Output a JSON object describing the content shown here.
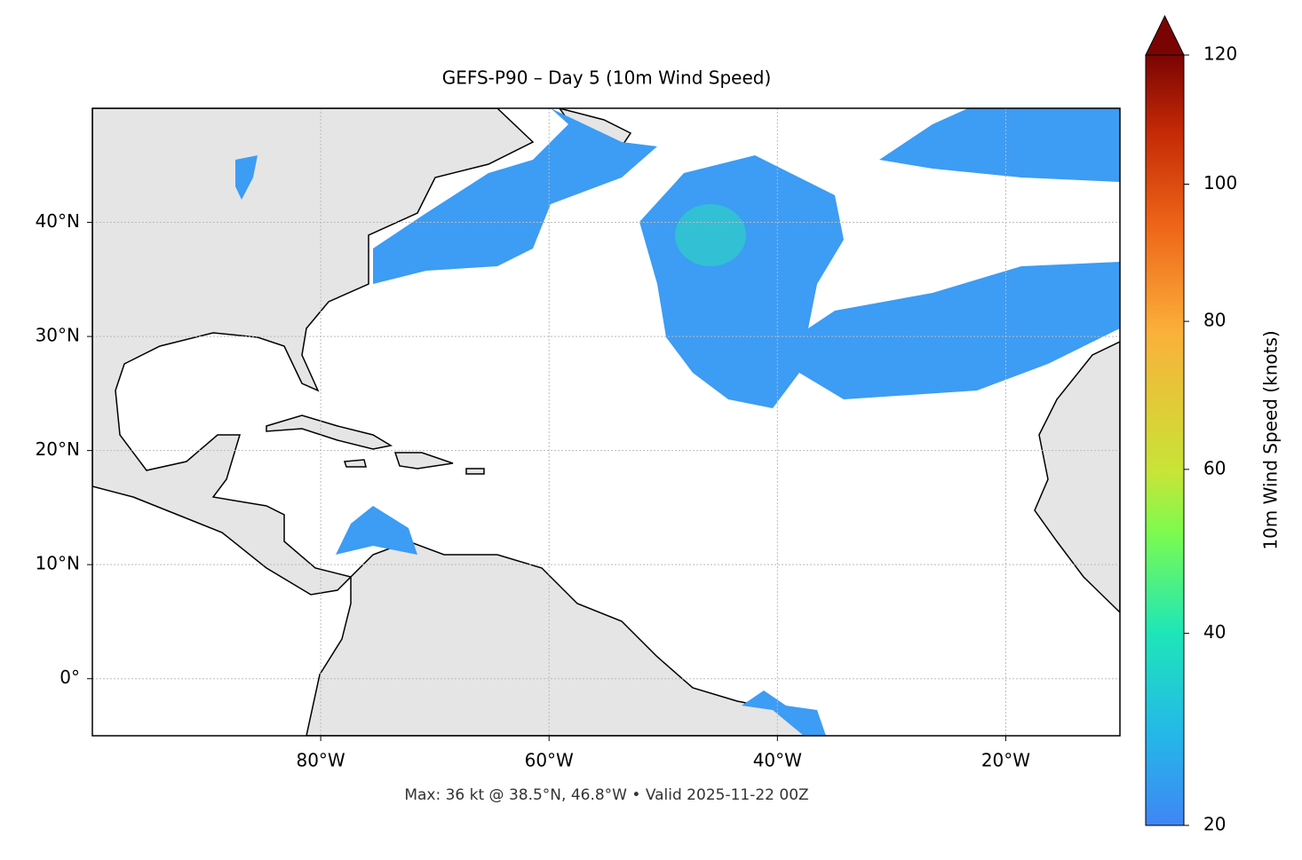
{
  "chart_data": {
    "type": "map",
    "title": "GEFS-P90 – Day 5 (10m Wind Speed)",
    "footnote": "Max: 36 kt @ 38.5°N, 46.8°W • Valid 2025-11-22 00Z",
    "xlim": [
      -100,
      -10
    ],
    "ylim": [
      -5,
      50
    ],
    "xticks": [
      {
        "value": -80,
        "label": "80°W"
      },
      {
        "value": -60,
        "label": "60°W"
      },
      {
        "value": -40,
        "label": "40°W"
      },
      {
        "value": -20,
        "label": "20°W"
      }
    ],
    "yticks": [
      {
        "value": 0,
        "label": "0°"
      },
      {
        "value": 10,
        "label": "10°N"
      },
      {
        "value": 20,
        "label": "20°N"
      },
      {
        "value": 30,
        "label": "30°N"
      },
      {
        "value": 40,
        "label": "40°N"
      }
    ],
    "grid": true,
    "colorbar": {
      "label": "10m Wind Speed (knots)",
      "lim": [
        20,
        120
      ],
      "ticks": [
        20,
        40,
        60,
        80,
        100,
        120
      ],
      "norm": "power",
      "gamma": 0.7,
      "extend": "max"
    }
  }
}
